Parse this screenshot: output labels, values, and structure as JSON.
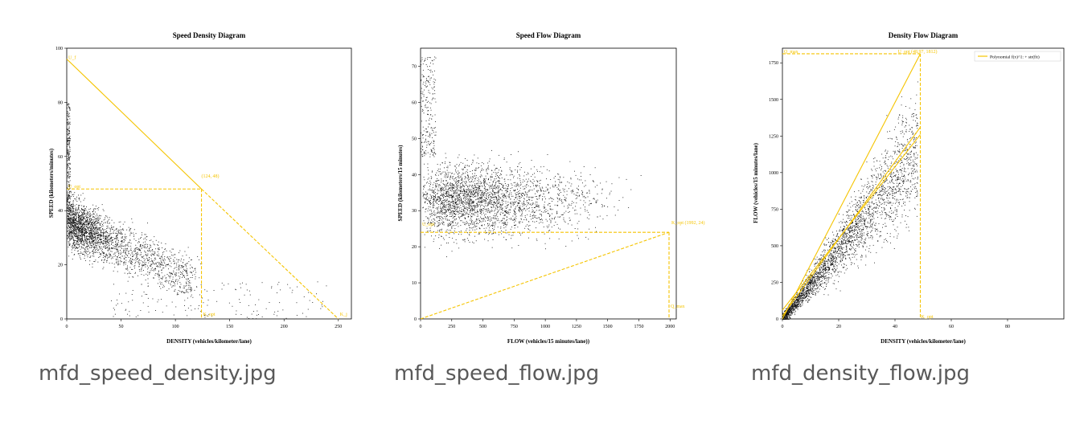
{
  "colors": {
    "accent": "#f5c400",
    "points": "#111111",
    "caption": "#595959",
    "axis": "#000000"
  },
  "files": [
    {
      "name": "mfd_speed_density.jpg",
      "chart_data": {
        "type": "scatter",
        "title": "Speed Density Diagram",
        "xlabel": "DENSITY (vehicles/kilometer/lane)",
        "ylabel": "SPEED (kilometers/minutes)",
        "xlim": [
          0,
          262
        ],
        "ylim": [
          0,
          100
        ],
        "xticks": [
          0,
          50,
          100,
          150,
          200,
          250
        ],
        "yticks": [
          0,
          20,
          40,
          60,
          80,
          100
        ],
        "annotations": {
          "peak": "(124, 48)",
          "u_f": "U_f",
          "k_j": "K_j",
          "u_opt": "U_opt",
          "k_opt": "K_opt"
        },
        "lines": {
          "free_speed": 96,
          "jam_density": 250,
          "peak_x": 124,
          "peak_y": 48
        }
      }
    },
    {
      "name": "mfd_speed_flow.jpg",
      "chart_data": {
        "type": "scatter",
        "title": "Speed Flow Diagram",
        "xlabel": "FLOW (vehicles/15 minutes/lane))",
        "ylabel": "SPEED (kilometers/15 minutes)",
        "xlim": [
          0,
          2050
        ],
        "ylim": [
          0,
          75
        ],
        "xticks": [
          0,
          250,
          500,
          750,
          1000,
          1250,
          1500,
          1750,
          2000
        ],
        "yticks": [
          0,
          10,
          20,
          30,
          40,
          50,
          60,
          70
        ],
        "annotations": {
          "peak": "(1992, 24)",
          "k_opt": "K_opt",
          "u_opt": "U_opt",
          "q_max": "Q_max"
        },
        "lines": {
          "peak_x": 1992,
          "peak_y": 24
        }
      }
    },
    {
      "name": "mfd_density_flow.jpg",
      "chart_data": {
        "type": "scatter",
        "title": "Density Flow Diagram",
        "xlabel": "DENSITY (vehicles/kilometer/lane)",
        "ylabel": "FLOW (vehicles/15 minutes/lane)",
        "xlim": [
          0,
          100
        ],
        "ylim": [
          0,
          1850
        ],
        "xticks": [
          0,
          20,
          40,
          60,
          80
        ],
        "yticks": [
          0,
          250,
          500,
          750,
          1000,
          1250,
          1500,
          1750
        ],
        "legend": "Polynomial f(x)^1: + str(fit)",
        "legend_position": "top-right",
        "annotations": {
          "peak": "(48.97, 1812)",
          "q_max": "Q_max",
          "u_opt": "U_opt",
          "k_opt": "K_opt"
        },
        "lines": {
          "peak_x": 49,
          "peak_y": 1812
        }
      }
    }
  ]
}
